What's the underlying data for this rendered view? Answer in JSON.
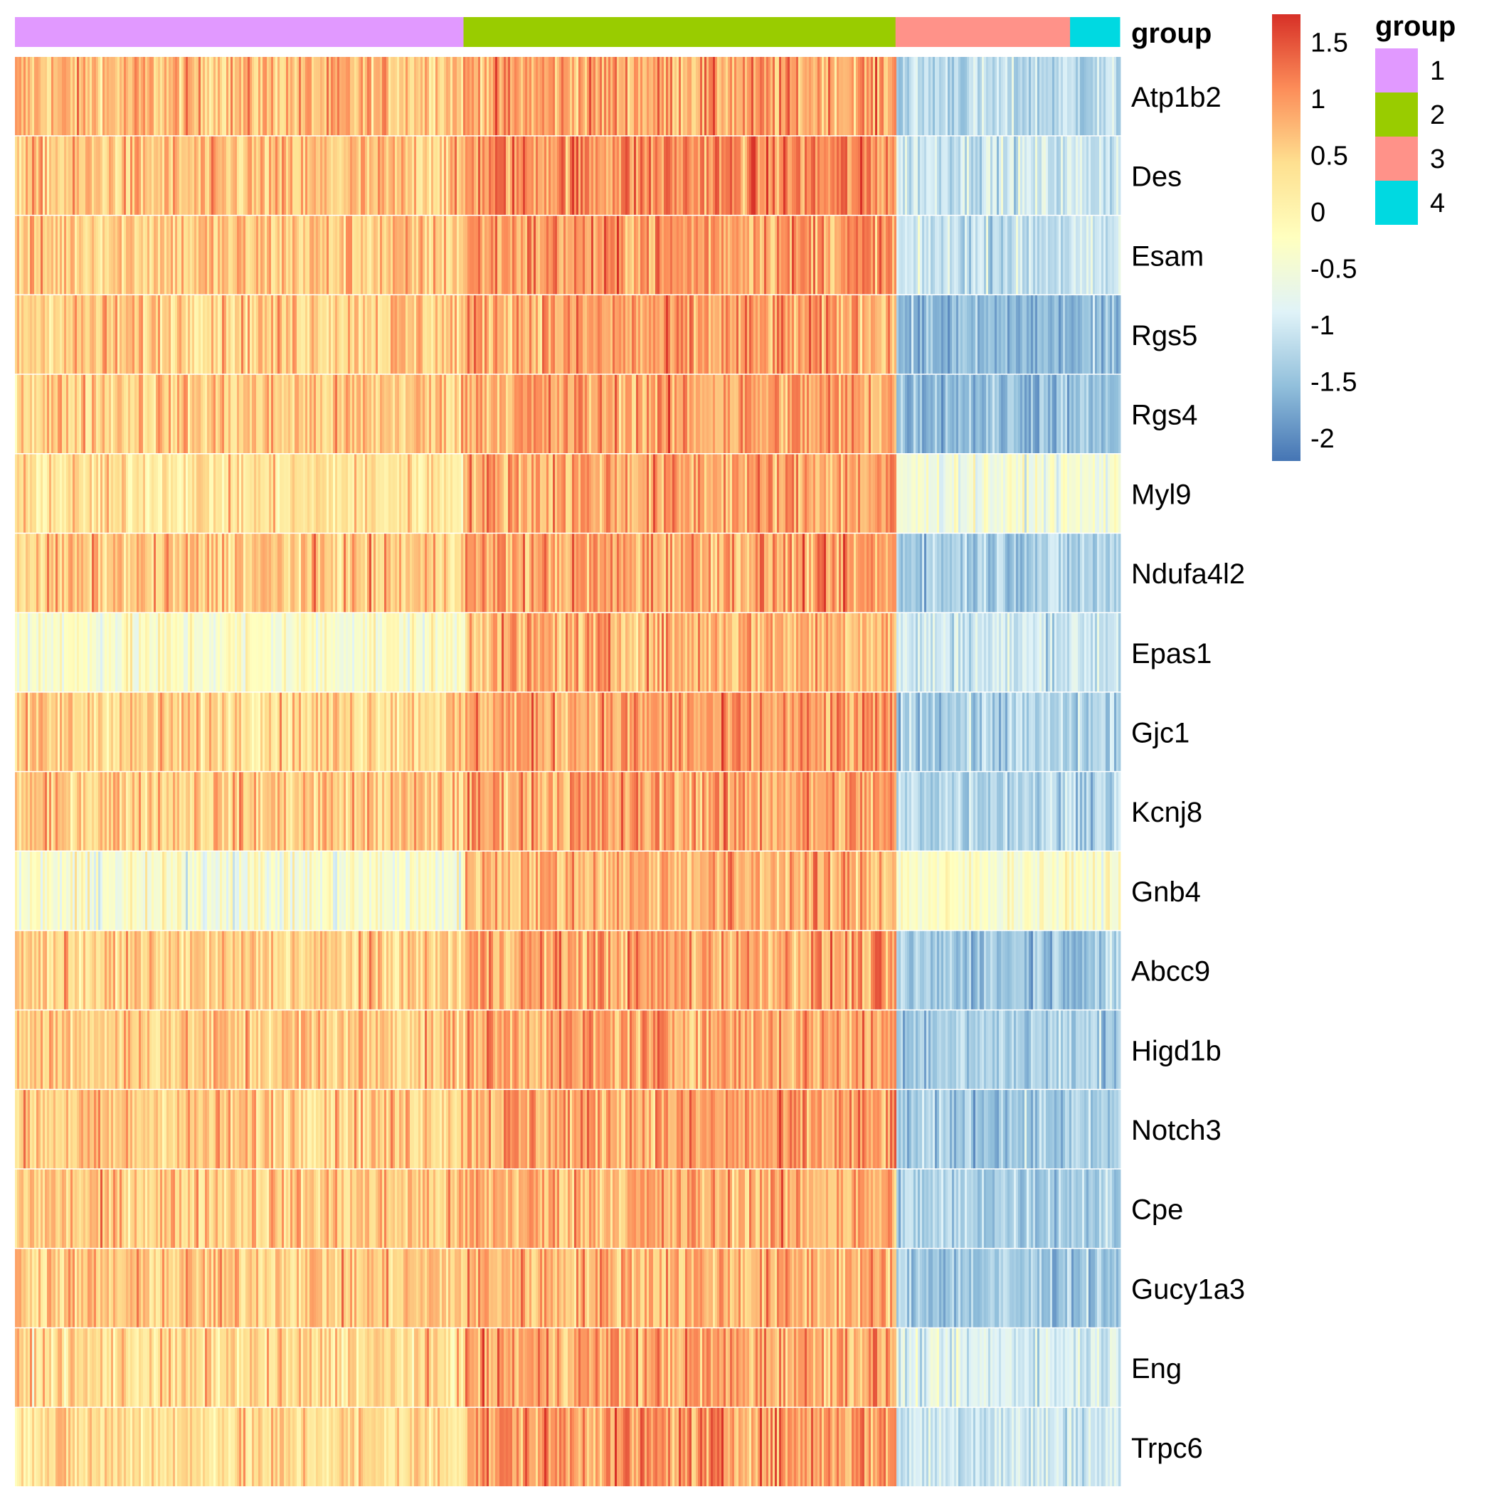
{
  "chart_data": {
    "type": "heatmap",
    "annotation_title": "group",
    "legend_title": "group",
    "rows": [
      "Atp1b2",
      "Des",
      "Esam",
      "Rgs5",
      "Rgs4",
      "Myl9",
      "Ndufa4l2",
      "Epas1",
      "Gjc1",
      "Kcnj8",
      "Gnb4",
      "Abcc9",
      "Higd1b",
      "Notch3",
      "Cpe",
      "Gucy1a3",
      "Eng",
      "Trpc6"
    ],
    "groups": [
      {
        "name": "1",
        "color": "#E199FF",
        "share": 0.406
      },
      {
        "name": "2",
        "color": "#99CC00",
        "share": 0.391
      },
      {
        "name": "3",
        "color": "#FF9289",
        "share": 0.158
      },
      {
        "name": "4",
        "color": "#00D9E1",
        "share": 0.045
      }
    ],
    "mean_value_by_row_and_group": [
      [
        0.7,
        0.9,
        -1.2,
        -1.2
      ],
      [
        0.6,
        1.1,
        -1.0,
        -1.0
      ],
      [
        0.6,
        1.0,
        -1.1,
        -1.1
      ],
      [
        0.6,
        0.9,
        -1.6,
        -1.6
      ],
      [
        0.6,
        0.9,
        -1.5,
        -1.5
      ],
      [
        0.3,
        0.9,
        -0.5,
        -0.5
      ],
      [
        0.6,
        0.9,
        -1.3,
        -1.3
      ],
      [
        -0.3,
        0.8,
        -1.0,
        -1.0
      ],
      [
        0.5,
        0.9,
        -1.3,
        -1.3
      ],
      [
        0.6,
        0.9,
        -1.2,
        -1.2
      ],
      [
        -0.4,
        0.8,
        -0.3,
        -0.3
      ],
      [
        0.5,
        0.9,
        -1.4,
        -1.4
      ],
      [
        0.6,
        0.9,
        -1.3,
        -1.3
      ],
      [
        0.6,
        0.9,
        -1.4,
        -1.4
      ],
      [
        0.6,
        0.8,
        -1.3,
        -1.3
      ],
      [
        0.6,
        0.8,
        -1.4,
        -1.4
      ],
      [
        0.4,
        0.9,
        -0.9,
        -0.9
      ],
      [
        0.4,
        1.0,
        -1.0,
        -1.0
      ]
    ],
    "colorbar": {
      "ticks": [
        1.5,
        1,
        0.5,
        0,
        -0.5,
        -1,
        -1.5,
        -2
      ],
      "tick_labels": [
        "1.5",
        "1",
        "0.5",
        "0",
        "-0.5",
        "-1",
        "-1.5",
        "-2"
      ],
      "range": [
        -2.2,
        1.75
      ],
      "colors": [
        "#4575B4",
        "#91BFDB",
        "#E0F3F8",
        "#FFFFBF",
        "#FEE090",
        "#FC8D59",
        "#D73027"
      ]
    }
  }
}
